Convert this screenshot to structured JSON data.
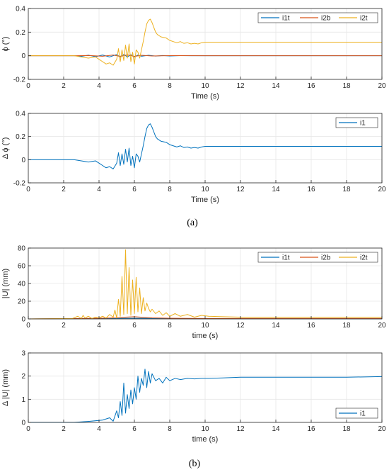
{
  "colors": {
    "i1t": "#0072BD",
    "i2b": "#D95319",
    "i2t": "#EDB120",
    "i1": "#0072BD",
    "grid": "#e6e6e6",
    "axis": "#262626"
  },
  "captions": {
    "a": "(a)",
    "b": "(b)"
  },
  "chart_data": [
    {
      "type": "line",
      "id": "phi",
      "ylabel": "ϕ (°)",
      "xlabel": "Time (s)",
      "xlim": [
        0,
        20
      ],
      "ylim": [
        -0.2,
        0.4
      ],
      "xticks": [
        "0",
        "2",
        "4",
        "6",
        "8",
        "10",
        "12",
        "14",
        "16",
        "18",
        "20"
      ],
      "yticks": [
        "-0.2",
        "0",
        "0.2",
        "0.4"
      ],
      "grid": true,
      "legend": "top-right",
      "series": [
        {
          "name": "i1t",
          "x": [
            0,
            2.6,
            3.0,
            3.4,
            3.8,
            4.2,
            4.6,
            5.0,
            5.2,
            5.4,
            5.6,
            5.8,
            6.0,
            6.2,
            6.4,
            6.8,
            7.2,
            7.6,
            8.0,
            8.6,
            9.2,
            10,
            12,
            14,
            16,
            18,
            20
          ],
          "y": [
            0,
            0,
            -0.005,
            0.005,
            -0.008,
            0.006,
            -0.01,
            0.01,
            -0.012,
            0.012,
            -0.01,
            0.008,
            -0.01,
            0.006,
            -0.004,
            0.004,
            -0.003,
            0.002,
            -0.002,
            0.001,
            0,
            0,
            0,
            0,
            0,
            0,
            0
          ]
        },
        {
          "name": "i2b",
          "x": [
            0,
            2.6,
            3.4,
            4.2,
            4.8,
            5.2,
            5.6,
            6.0,
            6.4,
            7.0,
            8.0,
            10,
            20
          ],
          "y": [
            0,
            0,
            0.002,
            -0.004,
            0.006,
            -0.006,
            0.008,
            -0.006,
            0.004,
            -0.002,
            0.001,
            0,
            0
          ]
        },
        {
          "name": "i2t",
          "x": [
            0,
            2.6,
            3.0,
            3.4,
            3.8,
            4.0,
            4.2,
            4.4,
            4.6,
            4.8,
            5.0,
            5.1,
            5.2,
            5.3,
            5.4,
            5.5,
            5.6,
            5.7,
            5.8,
            5.9,
            6.0,
            6.1,
            6.2,
            6.3,
            6.4,
            6.5,
            6.6,
            6.7,
            6.8,
            6.9,
            7.0,
            7.1,
            7.2,
            7.3,
            7.5,
            7.8,
            8.0,
            8.2,
            8.4,
            8.6,
            8.8,
            9.0,
            9.2,
            9.4,
            9.6,
            9.8,
            10,
            12,
            14,
            16,
            18,
            20
          ],
          "y": [
            0,
            0,
            -0.01,
            -0.02,
            -0.01,
            -0.03,
            -0.05,
            -0.07,
            -0.06,
            -0.08,
            -0.03,
            0.06,
            -0.05,
            0.05,
            -0.04,
            0.09,
            -0.02,
            0.1,
            -0.05,
            0.03,
            -0.07,
            0.05,
            0.03,
            -0.02,
            0.05,
            0.12,
            0.2,
            0.27,
            0.3,
            0.31,
            0.28,
            0.24,
            0.2,
            0.18,
            0.16,
            0.15,
            0.13,
            0.12,
            0.11,
            0.12,
            0.105,
            0.11,
            0.1,
            0.105,
            0.1,
            0.11,
            0.115,
            0.115,
            0.115,
            0.115,
            0.115,
            0.115
          ]
        }
      ]
    },
    {
      "type": "line",
      "id": "dphi",
      "ylabel": "Δ ϕ (°)",
      "xlabel": "Time (s)",
      "xlim": [
        0,
        20
      ],
      "ylim": [
        -0.2,
        0.4
      ],
      "xticks": [
        "0",
        "2",
        "4",
        "6",
        "8",
        "10",
        "12",
        "14",
        "16",
        "18",
        "20"
      ],
      "yticks": [
        "-0.2",
        "0",
        "0.2",
        "0.4"
      ],
      "grid": true,
      "legend": "top-right",
      "series": [
        {
          "name": "i1",
          "x": [
            0,
            2.6,
            3.0,
            3.4,
            3.8,
            4.0,
            4.2,
            4.4,
            4.6,
            4.8,
            5.0,
            5.1,
            5.2,
            5.3,
            5.4,
            5.5,
            5.6,
            5.7,
            5.8,
            5.9,
            6.0,
            6.1,
            6.2,
            6.3,
            6.4,
            6.5,
            6.6,
            6.7,
            6.8,
            6.9,
            7.0,
            7.1,
            7.2,
            7.3,
            7.5,
            7.8,
            8.0,
            8.2,
            8.4,
            8.6,
            8.8,
            9.0,
            9.2,
            9.4,
            9.6,
            9.8,
            10,
            12,
            14,
            16,
            18,
            20
          ],
          "y": [
            0,
            0,
            -0.01,
            -0.02,
            -0.01,
            -0.03,
            -0.05,
            -0.07,
            -0.06,
            -0.08,
            -0.03,
            0.06,
            -0.05,
            0.05,
            -0.04,
            0.09,
            -0.02,
            0.1,
            -0.05,
            0.03,
            -0.07,
            0.05,
            0.03,
            -0.02,
            0.05,
            0.12,
            0.2,
            0.27,
            0.3,
            0.31,
            0.28,
            0.24,
            0.2,
            0.18,
            0.16,
            0.15,
            0.13,
            0.12,
            0.11,
            0.12,
            0.105,
            0.11,
            0.1,
            0.105,
            0.1,
            0.11,
            0.115,
            0.115,
            0.115,
            0.115,
            0.115,
            0.115
          ]
        }
      ]
    },
    {
      "type": "line",
      "id": "U",
      "ylabel": "|U| (mm)",
      "xlabel": "time (s)",
      "xlim": [
        0,
        20
      ],
      "ylim": [
        0,
        80
      ],
      "xticks": [
        "0",
        "2",
        "4",
        "6",
        "8",
        "10",
        "12",
        "14",
        "16",
        "18",
        "20"
      ],
      "yticks": [
        "0",
        "20",
        "40",
        "60",
        "80"
      ],
      "grid": true,
      "legend": "top-right",
      "series": [
        {
          "name": "i1t",
          "x": [
            0,
            3,
            4,
            5,
            6,
            7,
            8,
            10,
            20
          ],
          "y": [
            0,
            0.3,
            0.4,
            0.6,
            0.8,
            0.6,
            0.4,
            0.2,
            0.1
          ]
        },
        {
          "name": "i2b",
          "x": [
            0,
            3,
            4,
            5,
            5.5,
            6,
            6.5,
            7,
            8,
            10,
            20
          ],
          "y": [
            0,
            0.5,
            0.8,
            1.2,
            2.0,
            2.5,
            1.8,
            1.2,
            0.8,
            0.5,
            0.5
          ]
        },
        {
          "name": "i2t",
          "x": [
            0,
            2.5,
            2.8,
            3.0,
            3.1,
            3.2,
            3.4,
            3.6,
            3.8,
            4.0,
            4.2,
            4.4,
            4.6,
            4.8,
            4.9,
            5.0,
            5.1,
            5.2,
            5.3,
            5.4,
            5.5,
            5.6,
            5.7,
            5.8,
            5.9,
            6.0,
            6.1,
            6.2,
            6.3,
            6.4,
            6.5,
            6.6,
            6.7,
            6.8,
            6.9,
            7.0,
            7.2,
            7.4,
            7.6,
            7.8,
            8.0,
            8.3,
            8.6,
            9.0,
            9.4,
            9.8,
            10.2,
            11,
            12,
            14,
            16,
            18,
            20
          ],
          "y": [
            0,
            0.5,
            3,
            0.5,
            4,
            1,
            3,
            0.5,
            2,
            1,
            3,
            1,
            5,
            2,
            10,
            1,
            22,
            3,
            48,
            5,
            78,
            6,
            58,
            4,
            44,
            6,
            47,
            8,
            35,
            6,
            24,
            9,
            18,
            12,
            8,
            11,
            6,
            9,
            4,
            7,
            3,
            6,
            3,
            5,
            2,
            4,
            3,
            2.5,
            2,
            2,
            2,
            2,
            2
          ]
        }
      ]
    },
    {
      "type": "line",
      "id": "dU",
      "ylabel": "Δ |U| (mm)",
      "xlabel": "time (s)",
      "xlim": [
        0,
        20
      ],
      "ylim": [
        0,
        3
      ],
      "xticks": [
        "0",
        "2",
        "4",
        "6",
        "8",
        "10",
        "12",
        "14",
        "16",
        "18",
        "20"
      ],
      "yticks": [
        "0",
        "1",
        "2",
        "3"
      ],
      "grid": true,
      "legend": "bottom-right",
      "series": [
        {
          "name": "i1",
          "x": [
            0,
            2.6,
            3.5,
            4.2,
            4.6,
            4.8,
            5.0,
            5.1,
            5.2,
            5.3,
            5.4,
            5.5,
            5.6,
            5.7,
            5.8,
            5.9,
            6.0,
            6.1,
            6.2,
            6.3,
            6.4,
            6.5,
            6.6,
            6.7,
            6.8,
            6.9,
            7.0,
            7.2,
            7.4,
            7.6,
            7.8,
            8.0,
            8.3,
            8.6,
            9.0,
            9.4,
            9.8,
            10.2,
            11,
            12,
            13,
            14,
            16,
            18,
            20
          ],
          "y": [
            0,
            0,
            0.05,
            0.1,
            0.2,
            0.05,
            0.5,
            0.2,
            0.9,
            0.3,
            1.7,
            0.4,
            1.2,
            0.6,
            1.4,
            0.8,
            1.5,
            1.0,
            2.0,
            1.3,
            1.9,
            1.6,
            2.3,
            1.5,
            2.2,
            1.7,
            2.1,
            1.8,
            1.9,
            1.7,
            1.95,
            1.8,
            1.9,
            1.85,
            1.9,
            1.88,
            1.9,
            1.9,
            1.92,
            1.95,
            1.95,
            1.95,
            1.95,
            1.95,
            1.98
          ]
        }
      ]
    }
  ]
}
